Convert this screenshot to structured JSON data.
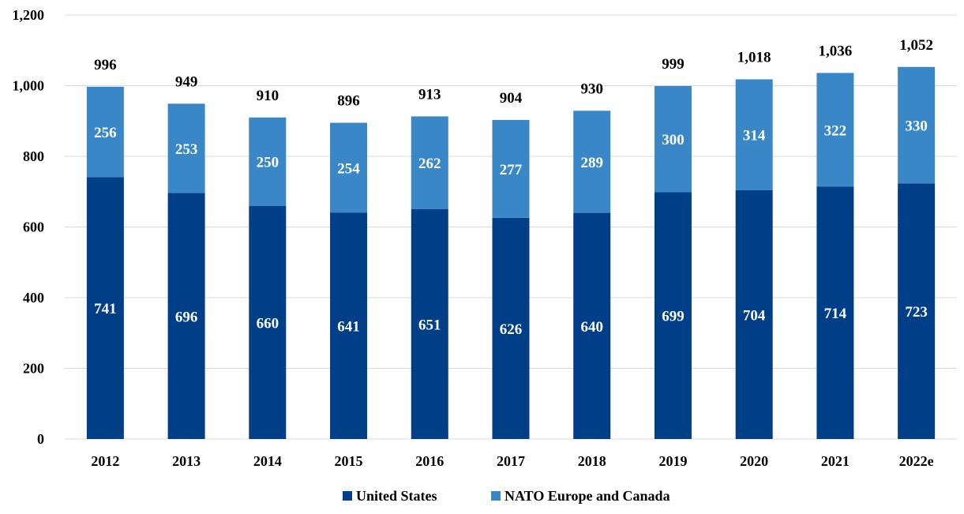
{
  "chart_data": {
    "type": "bar",
    "stacked": true,
    "title": "",
    "xlabel": "",
    "ylabel": "",
    "categories": [
      "2012",
      "2013",
      "2014",
      "2015",
      "2016",
      "2017",
      "2018",
      "2019",
      "2020",
      "2021",
      "2022e"
    ],
    "series": [
      {
        "name": "United States",
        "color": "#003f87",
        "values": [
          741,
          696,
          660,
          641,
          651,
          626,
          640,
          699,
          704,
          714,
          723
        ]
      },
      {
        "name": "NATO Europe and Canada",
        "color": "#3a87c8",
        "values": [
          256,
          253,
          250,
          254,
          262,
          277,
          289,
          300,
          314,
          322,
          330
        ]
      }
    ],
    "totals": [
      "996",
      "949",
      "910",
      "896",
      "913",
      "904",
      "930",
      "999",
      "1,018",
      "1,036",
      "1,052"
    ],
    "ylim": [
      0,
      1200
    ],
    "yticks": [
      0,
      200,
      400,
      600,
      800,
      1000,
      1200
    ],
    "ytick_labels": [
      "0",
      "200",
      "400",
      "600",
      "800",
      "1,000",
      "1,200"
    ],
    "grid": true,
    "legend_position": "bottom"
  }
}
